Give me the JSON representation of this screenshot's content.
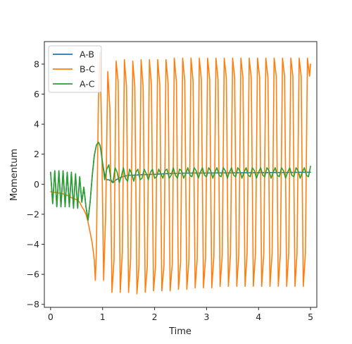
{
  "chart_data": {
    "type": "line",
    "title": "",
    "xlabel": "Time",
    "ylabel": "Momentum",
    "xlim": [
      -0.12,
      5.12
    ],
    "ylim": [
      -8.2,
      9.5
    ],
    "xticks": [
      0,
      1,
      2,
      3,
      4,
      5
    ],
    "xtick_labels": [
      "0",
      "1",
      "2",
      "3",
      "4",
      "5"
    ],
    "yticks": [
      -8,
      -6,
      -4,
      -2,
      0,
      2,
      4,
      6,
      8
    ],
    "ytick_labels": [
      "−8",
      "−6",
      "−4",
      "−2",
      "0",
      "2",
      "4",
      "6",
      "8"
    ],
    "grid": false,
    "legend_position": "top-left",
    "colors": {
      "A-B": "#1f77b4",
      "B-C": "#ff7f0e",
      "A-C": "#2ca02c"
    },
    "series": [
      {
        "name": "A-B",
        "x": [
          0,
          0.04,
          0.08,
          0.12,
          0.16,
          0.2,
          0.24,
          0.28,
          0.32,
          0.36,
          0.4,
          0.44,
          0.48,
          0.52,
          0.56,
          0.6,
          0.64,
          0.68,
          0.72,
          0.76,
          0.8,
          0.84,
          0.88,
          0.92,
          0.95,
          0.97,
          1.0,
          1.04,
          1.08,
          1.12,
          1.16,
          1.2,
          1.26,
          1.32,
          1.38,
          1.44,
          1.5,
          1.6,
          1.7,
          1.8,
          1.9,
          2.0,
          2.2,
          2.4,
          2.6,
          2.8,
          3.0,
          3.5,
          4.0,
          4.5,
          5.0
        ],
        "values": [
          0.8,
          -1.3,
          0.9,
          -1.5,
          0.9,
          -1.5,
          0.9,
          -1.5,
          0.8,
          -1.5,
          0.8,
          -1.6,
          0.7,
          -1.6,
          0.5,
          -1.2,
          -0.2,
          -1.5,
          -2.4,
          -1.2,
          0.5,
          1.9,
          2.6,
          2.8,
          2.6,
          2.2,
          1.4,
          0.6,
          0.3,
          0.3,
          0.2,
          0.1,
          0.3,
          0.4,
          0.5,
          0.55,
          0.6,
          0.6,
          0.62,
          0.64,
          0.65,
          0.66,
          0.7,
          0.72,
          0.74,
          0.75,
          0.75,
          0.76,
          0.77,
          0.78,
          0.8
        ]
      },
      {
        "name": "B-C",
        "x": [
          0,
          0.04,
          0.08,
          0.12,
          0.16,
          0.2,
          0.24,
          0.28,
          0.32,
          0.36,
          0.4,
          0.44,
          0.48,
          0.52,
          0.56,
          0.6,
          0.64,
          0.68,
          0.72,
          0.76,
          0.8,
          0.84,
          0.86,
          0.88,
          0.9,
          0.92,
          0.95,
          0.98,
          1.02,
          1.06,
          1.1,
          1.14,
          1.18,
          1.22,
          1.26,
          1.3,
          1.34,
          1.38,
          1.42,
          1.46,
          1.5,
          1.54,
          1.58,
          1.62,
          1.66,
          1.7,
          1.74,
          1.78,
          1.82,
          1.86,
          1.9,
          1.94,
          1.98,
          2.02,
          2.06,
          2.1,
          2.14,
          2.18,
          2.22,
          2.26,
          2.3,
          2.34,
          2.38,
          2.42,
          2.46,
          2.5,
          2.54,
          2.58,
          2.62,
          2.66,
          2.7,
          2.74,
          2.78,
          2.82,
          2.86,
          2.9,
          2.94,
          2.98,
          3.02,
          3.06,
          3.1,
          3.14,
          3.18,
          3.22,
          3.26,
          3.3,
          3.34,
          3.38,
          3.42,
          3.46,
          3.5,
          3.54,
          3.58,
          3.62,
          3.66,
          3.7,
          3.74,
          3.78,
          3.82,
          3.86,
          3.9,
          3.94,
          3.98,
          4.02,
          4.06,
          4.1,
          4.14,
          4.18,
          4.22,
          4.26,
          4.3,
          4.34,
          4.38,
          4.42,
          4.46,
          4.5,
          4.54,
          4.58,
          4.62,
          4.66,
          4.7,
          4.74,
          4.78,
          4.82,
          4.86,
          4.9,
          4.94,
          4.98,
          5.0
        ],
        "values": [
          -0.5,
          -0.52,
          -0.55,
          -0.55,
          -0.6,
          -0.6,
          -0.65,
          -0.7,
          -0.75,
          -0.8,
          -0.9,
          -0.95,
          -1.0,
          -1.1,
          -1.2,
          -1.5,
          -1.7,
          -2.0,
          -2.5,
          -3.2,
          -3.9,
          -5.0,
          -6.4,
          -4.5,
          0.5,
          5.5,
          8.8,
          4.0,
          -6.4,
          -2.0,
          7.5,
          5.0,
          -7.2,
          -5.0,
          8.2,
          6.8,
          -7.2,
          -4.5,
          8.3,
          6.5,
          -7.2,
          -5.0,
          8.2,
          6.5,
          -7.3,
          -5.5,
          8.3,
          6.5,
          -7.2,
          -5.5,
          8.3,
          6.6,
          -7.1,
          -5.4,
          8.3,
          6.6,
          -7.1,
          -5.4,
          8.3,
          6.7,
          -7.1,
          -5.3,
          8.4,
          6.8,
          -7.0,
          -5.2,
          8.4,
          6.9,
          -7.0,
          -5.1,
          8.4,
          6.9,
          -6.9,
          -5.0,
          8.4,
          7.0,
          -6.9,
          -4.9,
          8.4,
          7.0,
          -6.9,
          -4.8,
          8.4,
          7.0,
          -6.8,
          -4.8,
          8.4,
          7.1,
          -6.8,
          -4.7,
          8.4,
          7.1,
          -6.8,
          -4.7,
          8.4,
          7.1,
          -6.8,
          -4.6,
          8.4,
          7.1,
          -6.8,
          -4.6,
          8.4,
          7.1,
          -6.8,
          -4.6,
          8.4,
          7.1,
          -6.8,
          -4.6,
          8.4,
          7.2,
          -6.8,
          -4.6,
          8.4,
          7.2,
          -6.8,
          -4.6,
          8.4,
          7.2,
          -6.8,
          -4.6,
          8.4,
          7.2,
          -6.8,
          -4.6,
          8.4,
          7.2,
          8.0
        ]
      },
      {
        "name": "A-C",
        "x": [
          0,
          0.04,
          0.08,
          0.12,
          0.16,
          0.2,
          0.24,
          0.28,
          0.32,
          0.36,
          0.4,
          0.44,
          0.48,
          0.52,
          0.56,
          0.6,
          0.64,
          0.68,
          0.72,
          0.76,
          0.8,
          0.84,
          0.88,
          0.92,
          0.95,
          0.97,
          1.0,
          1.04,
          1.08,
          1.12,
          1.16,
          1.2,
          1.24,
          1.28,
          1.32,
          1.36,
          1.4,
          1.44,
          1.48,
          1.52,
          1.56,
          1.6,
          1.64,
          1.68,
          1.72,
          1.76,
          1.8,
          1.84,
          1.88,
          1.92,
          1.96,
          2.0,
          2.04,
          2.08,
          2.12,
          2.16,
          2.2,
          2.24,
          2.28,
          2.32,
          2.36,
          2.4,
          2.44,
          2.48,
          2.52,
          2.56,
          2.6,
          2.64,
          2.68,
          2.72,
          2.76,
          2.8,
          2.84,
          2.88,
          2.92,
          2.96,
          3.0,
          3.04,
          3.08,
          3.12,
          3.16,
          3.2,
          3.24,
          3.28,
          3.32,
          3.36,
          3.4,
          3.44,
          3.48,
          3.52,
          3.56,
          3.6,
          3.64,
          3.68,
          3.72,
          3.76,
          3.8,
          3.84,
          3.88,
          3.92,
          3.96,
          4.0,
          4.04,
          4.08,
          4.12,
          4.16,
          4.2,
          4.24,
          4.28,
          4.32,
          4.36,
          4.4,
          4.44,
          4.48,
          4.52,
          4.56,
          4.6,
          4.64,
          4.68,
          4.72,
          4.76,
          4.8,
          4.84,
          4.88,
          4.92,
          4.96,
          5.0
        ],
        "values": [
          0.8,
          -1.3,
          0.9,
          -1.5,
          0.9,
          -1.5,
          0.9,
          -1.5,
          0.8,
          -1.5,
          0.8,
          -1.6,
          0.7,
          -1.6,
          0.5,
          -1.2,
          -0.2,
          -1.5,
          -2.4,
          -1.2,
          0.5,
          1.9,
          2.6,
          2.8,
          2.6,
          2.2,
          1.4,
          0.3,
          1.0,
          1.3,
          0.3,
          0.1,
          1.1,
          0.8,
          0.1,
          0.5,
          1.1,
          0.4,
          0.2,
          1.0,
          0.7,
          0.2,
          0.8,
          1.0,
          0.3,
          0.4,
          1.0,
          0.7,
          0.3,
          0.8,
          1.0,
          0.4,
          0.5,
          1.0,
          0.7,
          0.4,
          0.9,
          1.0,
          0.4,
          0.6,
          1.1,
          0.6,
          0.4,
          1.0,
          0.9,
          0.4,
          0.7,
          1.1,
          0.6,
          0.5,
          1.1,
          0.9,
          0.4,
          0.8,
          1.1,
          0.6,
          0.5,
          1.1,
          0.9,
          0.4,
          0.8,
          1.1,
          0.6,
          0.5,
          1.1,
          0.9,
          0.4,
          0.8,
          1.1,
          0.6,
          0.5,
          1.1,
          0.9,
          0.4,
          0.8,
          1.1,
          0.6,
          0.5,
          1.1,
          0.9,
          0.4,
          0.8,
          1.1,
          0.6,
          0.5,
          1.1,
          0.9,
          0.4,
          0.8,
          1.1,
          0.6,
          0.5,
          1.1,
          0.9,
          0.4,
          0.8,
          1.1,
          0.6,
          0.5,
          1.1,
          0.9,
          0.4,
          0.8,
          1.1,
          0.6,
          0.5,
          1.2
        ]
      }
    ]
  }
}
